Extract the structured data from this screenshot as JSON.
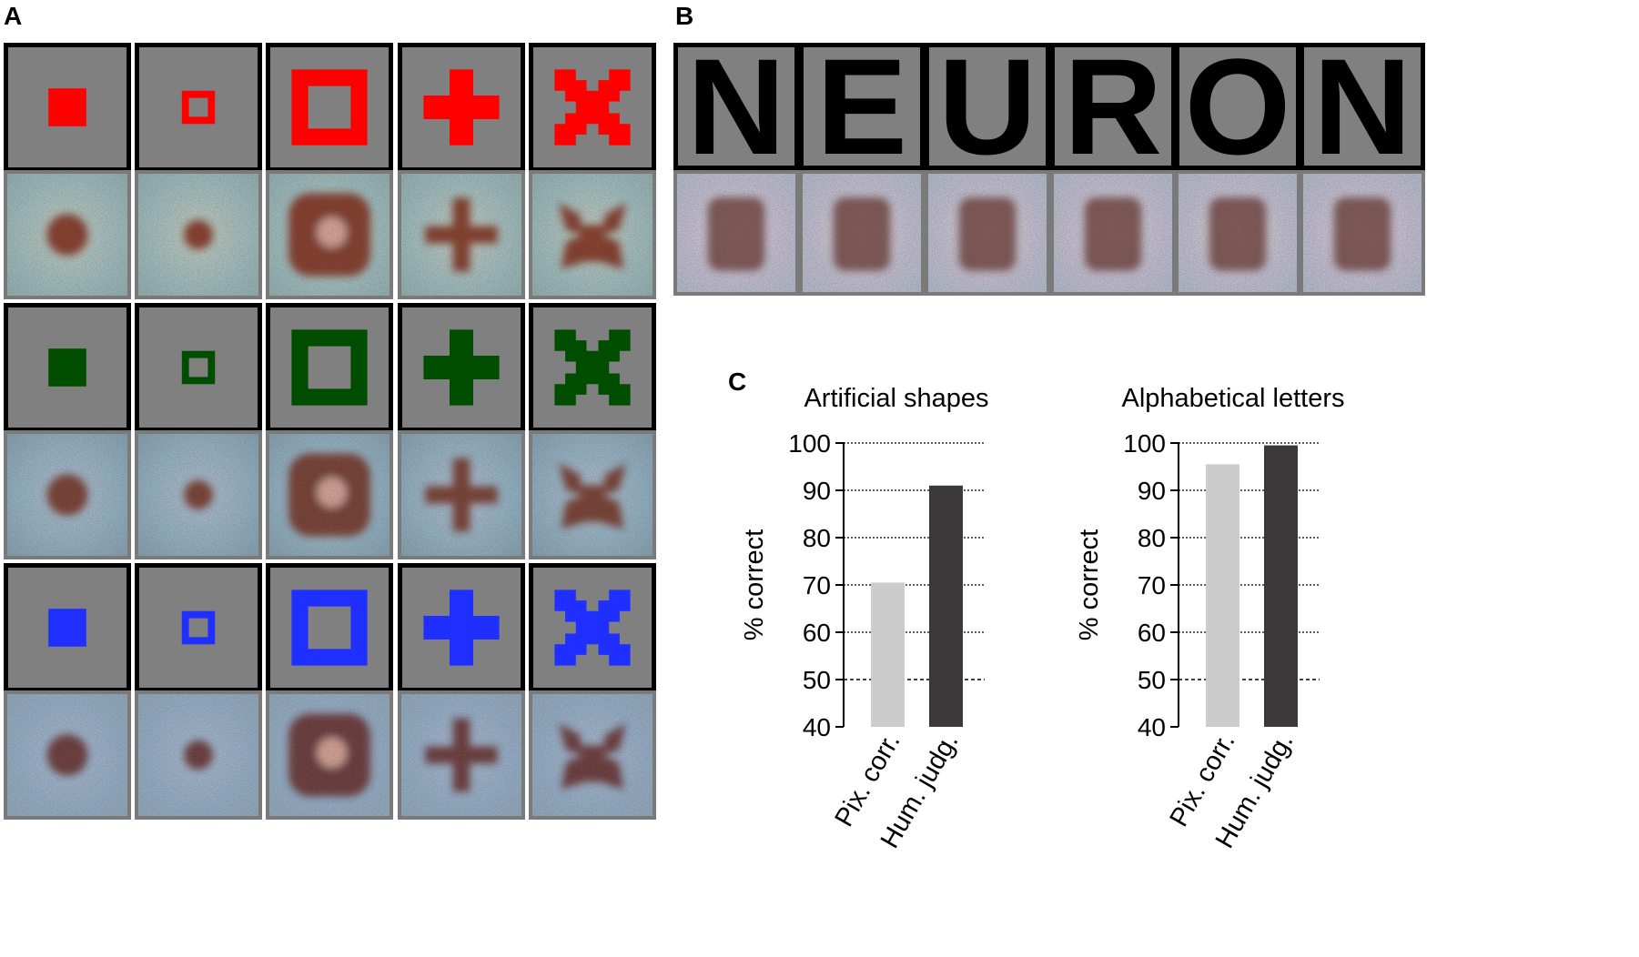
{
  "panel_labels": {
    "a": "A",
    "b": "B",
    "c": "C"
  },
  "panel_a": {
    "shapes": [
      "filled-square",
      "small-hollow-square",
      "large-hollow-square",
      "plus",
      "x"
    ],
    "rows": [
      {
        "name": "red",
        "color": "#ff0000",
        "recon_fg": "#7a1a10"
      },
      {
        "name": "green",
        "color": "#004d00",
        "recon_fg": "#6b2418"
      },
      {
        "name": "blue",
        "color": "#1f2fff",
        "recon_fg": "#5a1e22"
      }
    ]
  },
  "panel_b": {
    "letters": [
      "N",
      "E",
      "U",
      "R",
      "O",
      "N"
    ]
  },
  "colors": {
    "pix_corr": "#cccccc",
    "hum_judg": "#3b3939",
    "stim_bg": "#808080"
  },
  "chart_data": [
    {
      "type": "bar",
      "title": "Artificial shapes",
      "categories": [
        "Pix. corr.",
        "Hum. judg."
      ],
      "values": [
        70.5,
        91
      ],
      "ylabel": "% correct",
      "ylim": [
        40,
        100
      ],
      "yticks": [
        "40",
        "50",
        "60",
        "70",
        "80",
        "90",
        "100"
      ],
      "chance_level": 50,
      "grid": true
    },
    {
      "type": "bar",
      "title": "Alphabetical letters",
      "categories": [
        "Pix. corr.",
        "Hum. judg."
      ],
      "values": [
        95.5,
        99.5
      ],
      "ylabel": "% correct",
      "ylim": [
        40,
        100
      ],
      "yticks": [
        "40",
        "50",
        "60",
        "70",
        "80",
        "90",
        "100"
      ],
      "chance_level": 50,
      "grid": true
    }
  ]
}
